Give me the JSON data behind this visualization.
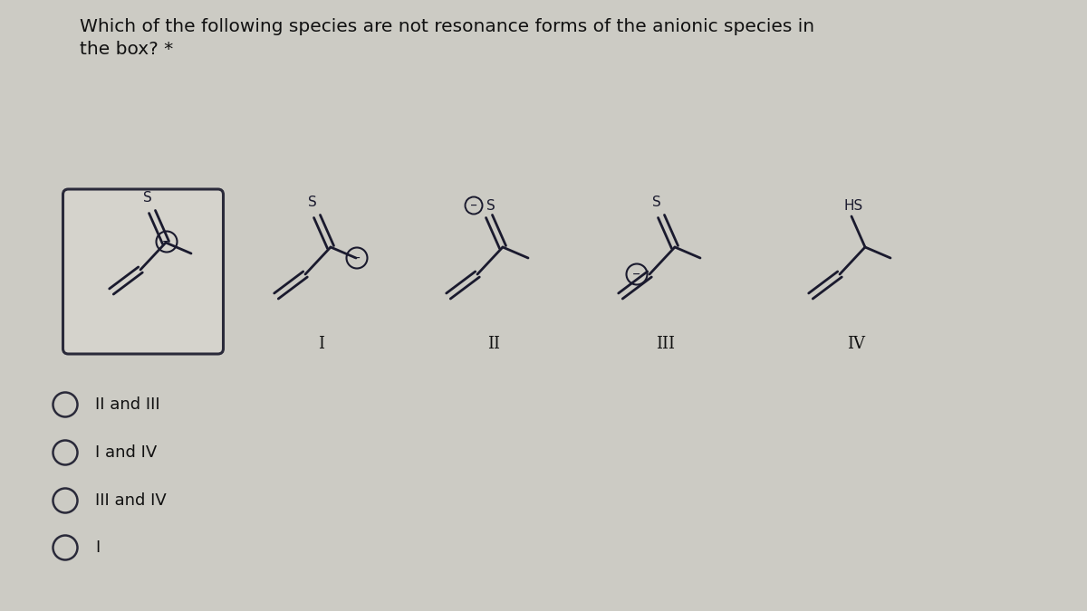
{
  "bg_color": "#cccbc4",
  "title_text": "Which of the following species are not resonance forms of the anionic species in\nthe box? *",
  "title_fontsize": 14.5,
  "options": [
    "II and III",
    "I and IV",
    "III and IV",
    "I"
  ],
  "box_color": "#2a2a3a",
  "text_color": "#111111",
  "circle_color": "#2a2a3a",
  "mol_line_color": "#1a1a2e",
  "mol_lw": 2.0
}
